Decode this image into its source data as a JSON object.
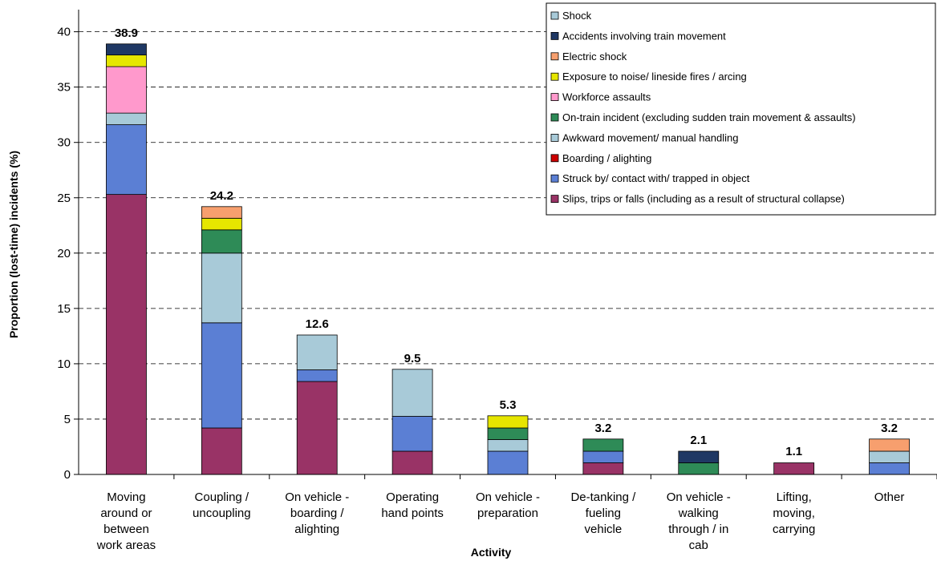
{
  "chart_data": {
    "type": "bar",
    "stacked": true,
    "title": "",
    "xlabel": "Activity",
    "ylabel": "Proportion (lost-time) incidents (%)",
    "ylim": [
      0,
      42
    ],
    "yticks": [
      0,
      5,
      10,
      15,
      20,
      25,
      30,
      35,
      40
    ],
    "grid": "horizontal dashed",
    "legend_position": "top-right",
    "categories": [
      [
        "Moving",
        "around or",
        "between",
        "work areas"
      ],
      [
        "Coupling /",
        "uncoupling"
      ],
      [
        "On vehicle -",
        "boarding /",
        "alighting"
      ],
      [
        "Operating",
        "hand points"
      ],
      [
        "On vehicle -",
        "preparation"
      ],
      [
        "De-tanking /",
        "fueling",
        "vehicle"
      ],
      [
        "On vehicle -",
        "walking",
        "through / in",
        "cab"
      ],
      [
        "Lifting,",
        "moving,",
        "carrying"
      ],
      [
        "Other"
      ]
    ],
    "totals": [
      "38.9",
      "24.2",
      "12.6",
      "9.5",
      "5.3",
      "3.2",
      "2.1",
      "1.1",
      "3.2"
    ],
    "series": [
      {
        "name": "Slips, trips or falls (including as a result of structural collapse)",
        "color": "#993366",
        "values": [
          25.3,
          4.2,
          8.4,
          2.1,
          0,
          1.05,
          0,
          1.05,
          0
        ]
      },
      {
        "name": "Struck by/ contact with/ trapped in object",
        "color": "#5B7FD4",
        "values": [
          6.3,
          9.5,
          1.05,
          3.15,
          2.1,
          1.05,
          0,
          0,
          1.05
        ]
      },
      {
        "name": "Boarding / alighting",
        "color": "#CC0000",
        "values": [
          0,
          0,
          0,
          0,
          0,
          0,
          0,
          0,
          0
        ]
      },
      {
        "name": "Awkward movement/ manual handling",
        "color": "#A8CAD8",
        "values": [
          1.05,
          6.3,
          3.15,
          4.25,
          1.05,
          0,
          0,
          0,
          1.05
        ]
      },
      {
        "name": "On-train incident (excluding sudden train movement & assaults)",
        "color": "#2E8B57",
        "values": [
          0,
          2.1,
          0,
          0,
          1.05,
          1.1,
          1.05,
          0,
          0
        ]
      },
      {
        "name": "Workforce assaults",
        "color": "#FF99CC",
        "values": [
          4.2,
          0,
          0,
          0,
          0,
          0,
          0,
          0,
          0
        ]
      },
      {
        "name": "Exposure to noise/ lineside fires / arcing",
        "color": "#E6E600",
        "values": [
          1.05,
          1.05,
          0,
          0,
          1.1,
          0,
          0,
          0,
          0
        ]
      },
      {
        "name": "Electric shock",
        "color": "#F79F6E",
        "values": [
          0,
          1.05,
          0,
          0,
          0,
          0,
          0,
          0,
          1.1
        ]
      },
      {
        "name": "Accidents involving train movement",
        "color": "#1F3864",
        "values": [
          1.0,
          0,
          0,
          0,
          0,
          0,
          1.05,
          0,
          0
        ]
      },
      {
        "name": "Shock",
        "color": "#A8CAD8",
        "values": [
          0,
          0,
          0,
          0,
          0,
          0,
          0,
          0,
          0
        ]
      }
    ],
    "legend_order": [
      "Shock",
      "Accidents involving train movement",
      "Electric shock",
      "Exposure to noise/ lineside fires / arcing",
      "Workforce assaults",
      "On-train incident (excluding sudden train movement & assaults)",
      "Awkward movement/ manual handling",
      "Boarding / alighting",
      "Struck by/ contact with/ trapped in object",
      "Slips, trips or falls (including as a result of structural collapse)"
    ]
  }
}
